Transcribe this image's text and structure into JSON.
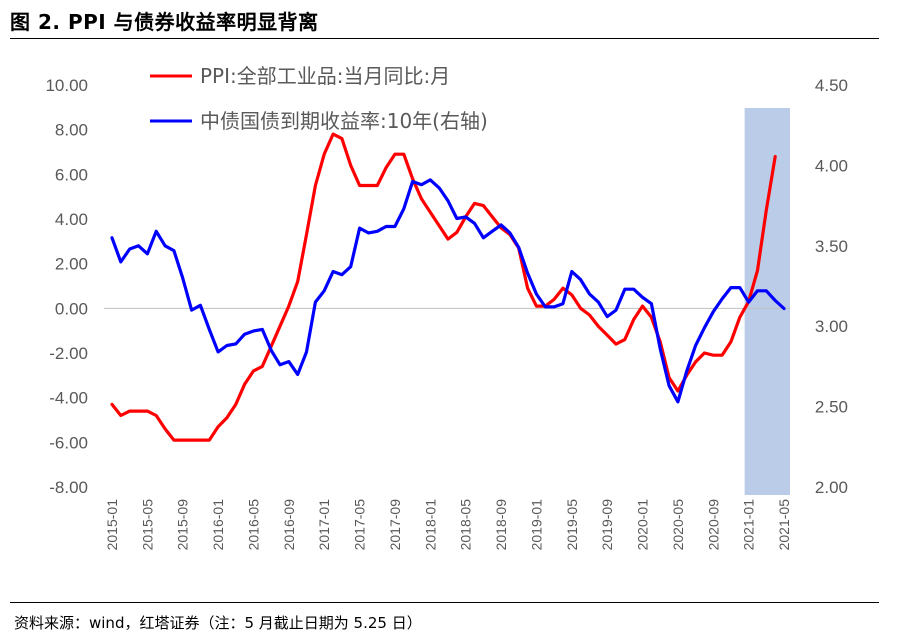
{
  "figure": {
    "title": "图 2. PPI 与债券收益率明显背离",
    "source": "资料来源：wind，红塔证券（注：5 月截止日期为 5.25 日）"
  },
  "chart_data": {
    "type": "line",
    "x": [
      "2015-01",
      "2015-02",
      "2015-03",
      "2015-04",
      "2015-05",
      "2015-06",
      "2015-07",
      "2015-08",
      "2015-09",
      "2015-10",
      "2015-11",
      "2015-12",
      "2016-01",
      "2016-02",
      "2016-03",
      "2016-04",
      "2016-05",
      "2016-06",
      "2016-07",
      "2016-08",
      "2016-09",
      "2016-10",
      "2016-11",
      "2016-12",
      "2017-01",
      "2017-02",
      "2017-03",
      "2017-04",
      "2017-05",
      "2017-06",
      "2017-07",
      "2017-08",
      "2017-09",
      "2017-10",
      "2017-11",
      "2017-12",
      "2018-01",
      "2018-02",
      "2018-03",
      "2018-04",
      "2018-05",
      "2018-06",
      "2018-07",
      "2018-08",
      "2018-09",
      "2018-10",
      "2018-11",
      "2018-12",
      "2019-01",
      "2019-02",
      "2019-03",
      "2019-04",
      "2019-05",
      "2019-06",
      "2019-07",
      "2019-08",
      "2019-09",
      "2019-10",
      "2019-11",
      "2019-12",
      "2020-01",
      "2020-02",
      "2020-03",
      "2020-04",
      "2020-05",
      "2020-06",
      "2020-07",
      "2020-08",
      "2020-09",
      "2020-10",
      "2020-11",
      "2020-12",
      "2021-01",
      "2021-02",
      "2021-03",
      "2021-04",
      "2021-05"
    ],
    "x_tick_labels": [
      "2015-01",
      "2015-05",
      "2015-09",
      "2016-01",
      "2016-05",
      "2016-09",
      "2017-01",
      "2017-05",
      "2017-09",
      "2018-01",
      "2018-05",
      "2018-09",
      "2019-01",
      "2019-05",
      "2019-09",
      "2020-01",
      "2020-05",
      "2020-09",
      "2021-01",
      "2021-05"
    ],
    "series": [
      {
        "name": "PPI:全部工业品:当月同比:月",
        "axis": "left",
        "color": "#ff0000",
        "values": [
          -4.3,
          -4.8,
          -4.6,
          -4.6,
          -4.6,
          -4.8,
          -5.4,
          -5.9,
          -5.9,
          -5.9,
          -5.9,
          -5.9,
          -5.3,
          -4.9,
          -4.3,
          -3.4,
          -2.8,
          -2.6,
          -1.7,
          -0.8,
          0.1,
          1.2,
          3.3,
          5.5,
          6.9,
          7.8,
          7.6,
          6.4,
          5.5,
          5.5,
          5.5,
          6.3,
          6.9,
          6.9,
          5.8,
          4.9,
          4.3,
          3.7,
          3.1,
          3.4,
          4.1,
          4.7,
          4.6,
          4.1,
          3.6,
          3.3,
          2.7,
          0.9,
          0.1,
          0.1,
          0.4,
          0.9,
          0.6,
          0.0,
          -0.3,
          -0.8,
          -1.2,
          -1.6,
          -1.4,
          -0.5,
          0.1,
          -0.4,
          -1.5,
          -3.1,
          -3.7,
          -3.0,
          -2.4,
          -2.0,
          -2.1,
          -2.1,
          -1.5,
          -0.4,
          0.3,
          1.7,
          4.4,
          6.8,
          null
        ]
      },
      {
        "name": "中债国债到期收益率:10年(右轴)",
        "axis": "right",
        "color": "#0000ff",
        "values": [
          3.55,
          3.4,
          3.48,
          3.5,
          3.45,
          3.59,
          3.5,
          3.47,
          3.3,
          3.1,
          3.13,
          2.98,
          2.84,
          2.88,
          2.89,
          2.95,
          2.97,
          2.98,
          2.85,
          2.76,
          2.78,
          2.7,
          2.84,
          3.15,
          3.22,
          3.34,
          3.32,
          3.37,
          3.61,
          3.58,
          3.59,
          3.62,
          3.62,
          3.73,
          3.9,
          3.88,
          3.91,
          3.86,
          3.78,
          3.67,
          3.68,
          3.64,
          3.55,
          3.59,
          3.63,
          3.58,
          3.49,
          3.33,
          3.2,
          3.12,
          3.12,
          3.14,
          3.34,
          3.29,
          3.2,
          3.15,
          3.06,
          3.1,
          3.23,
          3.23,
          3.18,
          3.14,
          2.86,
          2.63,
          2.53,
          2.72,
          2.88,
          2.99,
          3.09,
          3.17,
          3.24,
          3.24,
          3.15,
          3.22,
          3.22,
          3.16,
          3.11
        ]
      }
    ],
    "y_left": {
      "min": -8,
      "max": 10,
      "ticks": [
        "-8.00",
        "-6.00",
        "-4.00",
        "-2.00",
        "0.00",
        "2.00",
        "4.00",
        "6.00",
        "8.00",
        "10.00"
      ]
    },
    "y_right": {
      "min": 2.0,
      "max": 4.5,
      "ticks": [
        "2.00",
        "2.50",
        "3.00",
        "3.50",
        "4.00",
        "4.50"
      ]
    },
    "highlight_region": {
      "from": "2021-01",
      "to": "2021-05",
      "color": "#b4c7e7"
    },
    "legend_position": "top-left",
    "grid": false
  }
}
